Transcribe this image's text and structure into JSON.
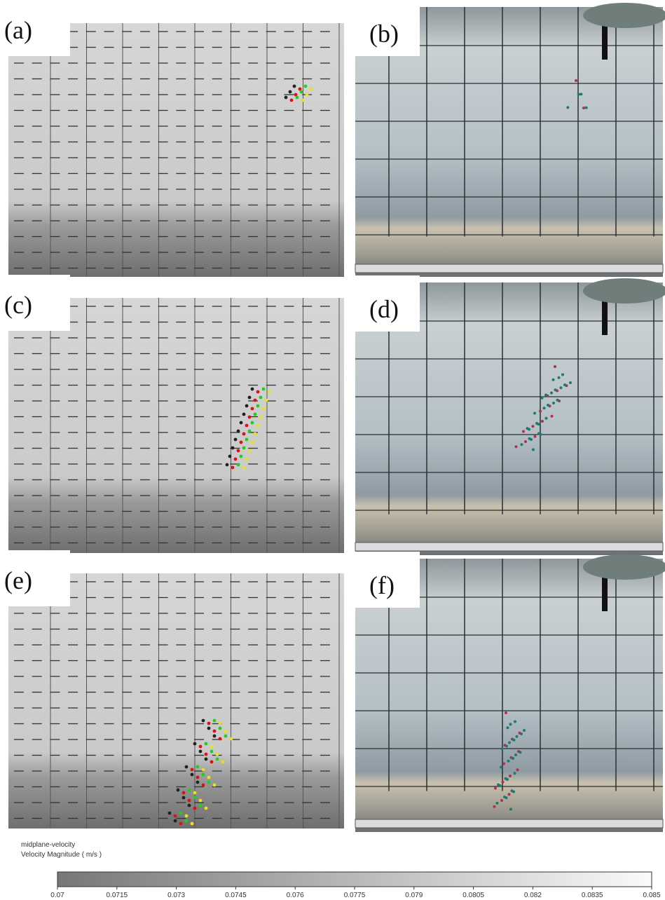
{
  "panels": [
    {
      "label": "(a)"
    },
    {
      "label": "(b)"
    },
    {
      "label": "(c)"
    },
    {
      "label": "(d)"
    },
    {
      "label": "(e)"
    },
    {
      "label": "(f)"
    }
  ],
  "colorbar": {
    "title": "midplane-velocity",
    "subtitle": "Velocity Magnitude ( m/s )",
    "lim": [
      0.07,
      0.085
    ],
    "ticks": [
      0.07,
      0.0715,
      0.073,
      0.0745,
      0.076,
      0.0775,
      0.079,
      0.0805,
      0.082,
      0.0835,
      0.085
    ]
  }
}
